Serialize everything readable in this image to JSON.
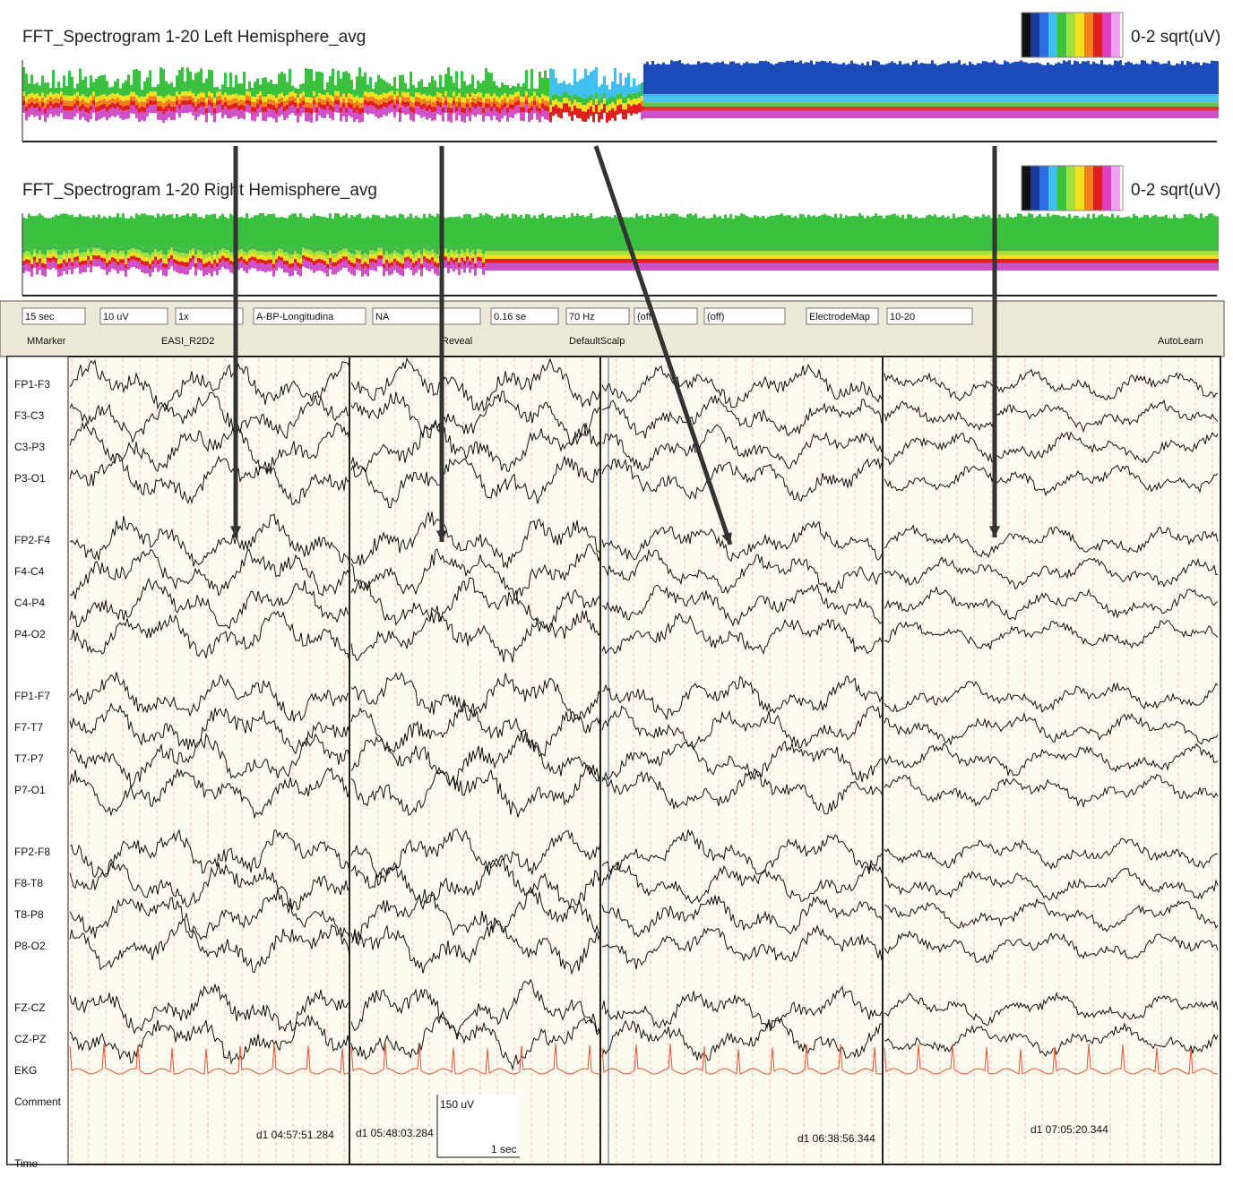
{
  "spectrograms": [
    {
      "title": "FFT_Spectrogram 1-20 Left Hemisphere_avg",
      "scale": "0-2 sqrt(uV)"
    },
    {
      "title": "FFT_Spectrogram 1-20 Right Hemisphere_avg",
      "scale": "0-2 sqrt(uV)"
    }
  ],
  "toolbar": {
    "row1": [
      "15 sec",
      "10 uV",
      "1x",
      "A-BP-Longitudina",
      "NA",
      "0.16 se",
      "70 Hz",
      "(off",
      "(off)",
      "ElectrodeMap",
      "10-20"
    ],
    "row2": [
      "MMarker",
      "EASI_R2D2",
      "Reveal",
      "DefaultScalp",
      "AutoLearn"
    ]
  },
  "channels": [
    "FP1-F3",
    "F3-C3",
    "C3-P3",
    "P3-O1",
    "FP2-F4",
    "F4-C4",
    "C4-P4",
    "P4-O2",
    "FP1-F7",
    "F7-T7",
    "T7-P7",
    "P7-O1",
    "FP2-F8",
    "F8-T8",
    "T8-P8",
    "P8-O2",
    "FZ-CZ",
    "CZ-PZ",
    "EKG",
    "Comment",
    "Time"
  ],
  "timestamps": [
    "d1 04:57:51.284",
    "d1 05:48:03.284",
    "d1 06:38:56.344",
    "d1 07:05:20.344"
  ],
  "scale_bar": {
    "amplitude": "150 uV",
    "time": "1 sec"
  }
}
